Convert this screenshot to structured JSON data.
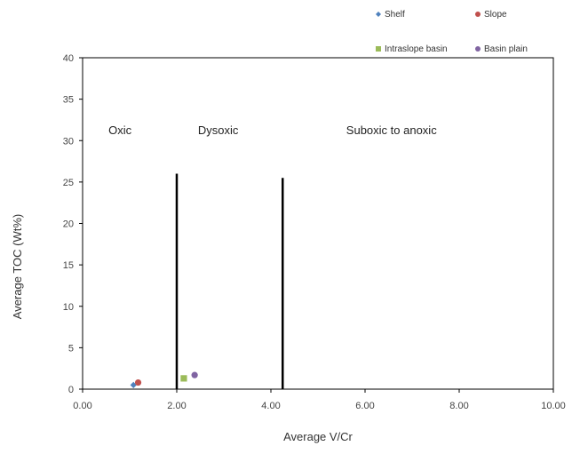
{
  "chart_data": {
    "type": "scatter",
    "xlabel": "Average V/Cr",
    "ylabel": "Average TOC (Wt%)",
    "xlim": [
      0,
      10
    ],
    "ylim": [
      0,
      40
    ],
    "x_ticks": [
      "0.00",
      "2.00",
      "4.00",
      "6.00",
      "8.00",
      "10.00"
    ],
    "y_ticks": [
      "0",
      "5",
      "10",
      "15",
      "20",
      "25",
      "30",
      "35",
      "40"
    ],
    "grid": false,
    "legend_position": "top-right",
    "series": [
      {
        "name": "Shelf",
        "marker": "diamond",
        "color": "#4f81bd",
        "points": [
          {
            "x": 1.08,
            "y": 0.5
          }
        ]
      },
      {
        "name": "Slope",
        "marker": "circle",
        "color": "#c0504d",
        "points": [
          {
            "x": 1.18,
            "y": 0.8
          }
        ]
      },
      {
        "name": "Intraslope basin",
        "marker": "square",
        "color": "#9bbb59",
        "points": [
          {
            "x": 2.15,
            "y": 1.3
          }
        ]
      },
      {
        "name": "Basin plain",
        "marker": "circle",
        "color": "#8064a2",
        "points": [
          {
            "x": 2.38,
            "y": 1.7
          }
        ]
      }
    ],
    "threshold_lines": [
      {
        "x": 2.0,
        "y_from": 0,
        "y_to": 26
      },
      {
        "x": 4.25,
        "y_from": 0,
        "y_to": 25.5
      }
    ],
    "annotations": [
      {
        "text": "Oxic",
        "x": 0.55,
        "y": 30.8
      },
      {
        "text": "Dysoxic",
        "x": 2.45,
        "y": 30.8
      },
      {
        "text": "Suboxic to anoxic",
        "x": 5.6,
        "y": 30.8
      }
    ]
  }
}
